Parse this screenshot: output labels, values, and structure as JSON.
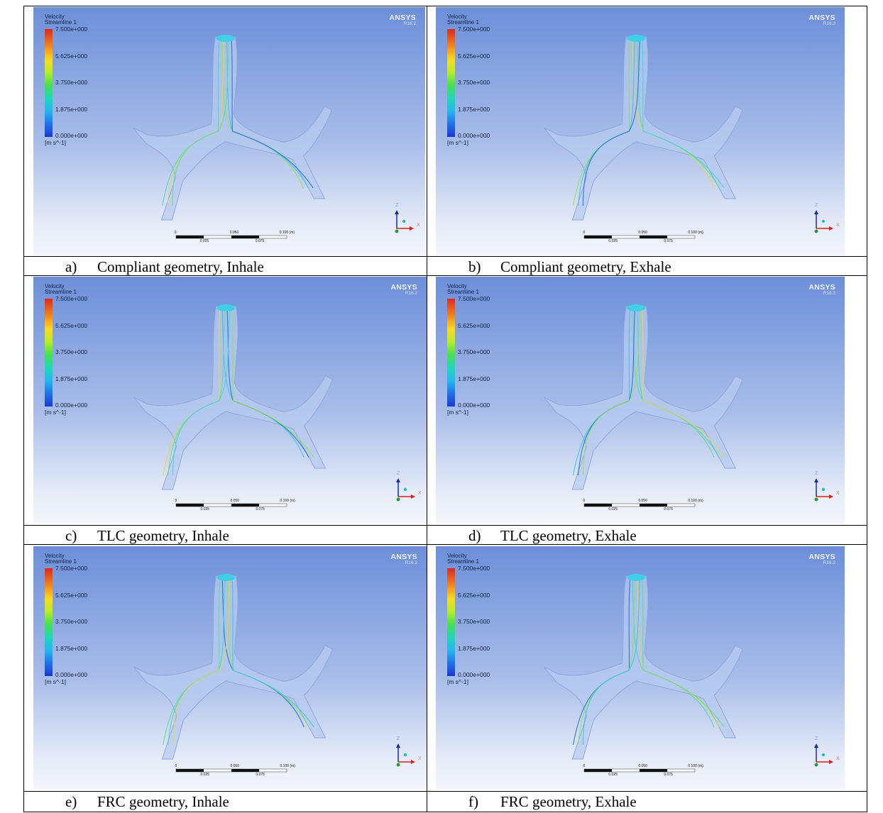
{
  "panels": [
    {
      "id": "a",
      "letter": "a)",
      "caption": "Compliant geometry, Inhale"
    },
    {
      "id": "b",
      "letter": "b)",
      "caption": "Compliant geometry, Exhale"
    },
    {
      "id": "c",
      "letter": "c)",
      "caption": "TLC geometry, Inhale"
    },
    {
      "id": "d",
      "letter": "d)",
      "caption": "TLC geometry, Exhale"
    },
    {
      "id": "e",
      "letter": "e)",
      "caption": "FRC geometry, Inhale"
    },
    {
      "id": "f",
      "letter": "f)",
      "caption": "FRC geometry, Exhale"
    }
  ],
  "legend": {
    "title": "Velocity\nStreamline 1",
    "ticks": [
      "7.500e+000",
      "5.625e+000",
      "3.750e+000",
      "1.875e+000",
      "0.000e+000"
    ],
    "unit": "[m s^-1]"
  },
  "logo": {
    "brand": "ANSYS",
    "version": "R16.2"
  },
  "scalebar": {
    "top_labels": [
      "0",
      "0.050",
      "0.100  (m)"
    ],
    "bottom_labels": [
      "0.025",
      "0.075"
    ]
  },
  "axes": {
    "z": "Z",
    "x": "X"
  },
  "colors": {
    "background_top": "#6c8fd9",
    "background_bottom": "#f4f6fb",
    "airway": "#b8cbef"
  }
}
